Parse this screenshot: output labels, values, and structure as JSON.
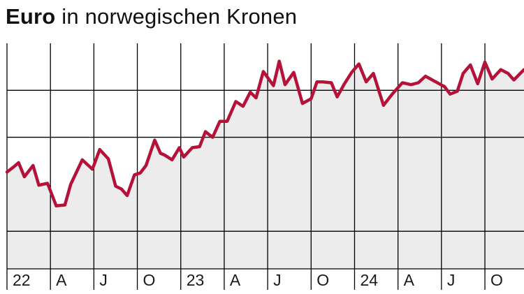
{
  "header": {
    "title_bold": "Euro",
    "title_rest": "in norwegischen Kronen"
  },
  "colors": {
    "line": "#b5123a",
    "area": "#ececec",
    "grid": "#000000",
    "text": "#1a1a1a"
  },
  "chart_data": {
    "type": "area",
    "title": "Euro in norwegischen Kronen",
    "xlabel": "",
    "ylabel": "",
    "tick_labels": [
      "22",
      "A",
      "J",
      "O",
      "23",
      "A",
      "J",
      "O",
      "24",
      "A",
      "J",
      "O"
    ],
    "xlim": [
      0,
      35.7
    ],
    "ylim": [
      9.6,
      12.0
    ],
    "y_gridlines": [
      10.0,
      11.0,
      11.5
    ],
    "grid": true,
    "legend": "none",
    "series": [
      {
        "x": [
          0.0,
          0.5,
          0.8,
          1.2,
          1.8,
          2.2,
          2.8,
          3.4,
          4.0,
          4.4,
          5.2,
          5.9,
          6.4,
          7.0,
          7.5,
          7.9,
          8.3,
          8.8,
          9.2,
          9.6,
          10.2,
          10.6,
          10.9,
          11.4,
          11.9,
          12.2,
          12.8,
          13.3,
          13.7,
          14.2,
          14.7,
          15.2,
          15.8,
          16.3,
          16.8,
          17.2,
          17.7,
          18.4,
          18.8,
          19.2,
          19.8,
          20.4,
          21.0,
          21.4,
          21.8,
          22.4,
          22.8,
          23.3,
          23.8,
          24.3,
          24.8,
          25.3,
          26.0,
          26.6,
          27.3,
          27.9,
          28.4,
          28.9,
          29.6,
          30.2,
          30.6,
          31.1,
          31.5,
          32.0,
          32.5,
          33.0,
          33.5,
          34.1,
          34.6,
          35.0,
          35.7
        ],
        "values": [
          10.63,
          10.69,
          10.73,
          10.58,
          10.7,
          10.49,
          10.51,
          10.27,
          10.28,
          10.5,
          10.76,
          10.66,
          10.87,
          10.77,
          10.48,
          10.45,
          10.38,
          10.6,
          10.62,
          10.7,
          10.97,
          10.83,
          10.81,
          10.76,
          10.89,
          10.79,
          10.89,
          10.9,
          11.06,
          11.0,
          11.17,
          11.17,
          11.38,
          11.33,
          11.48,
          11.42,
          11.7,
          11.55,
          11.81,
          11.56,
          11.69,
          11.36,
          11.41,
          11.59,
          11.59,
          11.58,
          11.43,
          11.57,
          11.69,
          11.78,
          11.59,
          11.68,
          11.34,
          11.46,
          11.58,
          11.56,
          11.58,
          11.65,
          11.59,
          11.54,
          11.46,
          11.49,
          11.68,
          11.77,
          11.57,
          11.8,
          11.62,
          11.72,
          11.68,
          11.61,
          11.72
        ]
      }
    ]
  }
}
